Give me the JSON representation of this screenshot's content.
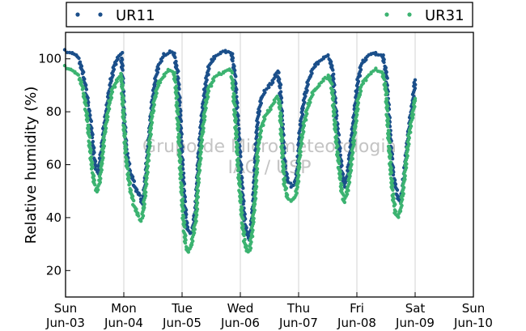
{
  "chart_data": {
    "type": "scatter",
    "title": "",
    "ylabel": "Relative humidity (%)",
    "xlabel": "",
    "watermark": [
      "Grupo de Micrometeorologia",
      "IAG / USP"
    ],
    "x_ticks": [
      {
        "day": "Sun",
        "date": "Jun-03"
      },
      {
        "day": "Mon",
        "date": "Jun-04"
      },
      {
        "day": "Tue",
        "date": "Jun-05"
      },
      {
        "day": "Wed",
        "date": "Jun-06"
      },
      {
        "day": "Thu",
        "date": "Jun-07"
      },
      {
        "day": "Fri",
        "date": "Jun-08"
      },
      {
        "day": "Sat",
        "date": "Jun-09"
      },
      {
        "day": "Sun",
        "date": "Jun-10"
      }
    ],
    "xlim_days": [
      0,
      7
    ],
    "ylim": [
      10,
      110
    ],
    "y_ticks": [
      20,
      40,
      60,
      80,
      100
    ],
    "grid_x": true,
    "grid_y": false,
    "legend_position": "top",
    "series": [
      {
        "name": "UR11",
        "color": "#1b4f8a",
        "points": [
          [
            0.0,
            103
          ],
          [
            0.1,
            102.5
          ],
          [
            0.2,
            101
          ],
          [
            0.26,
            98
          ],
          [
            0.32,
            92
          ],
          [
            0.38,
            84
          ],
          [
            0.44,
            74
          ],
          [
            0.48,
            65
          ],
          [
            0.52,
            58
          ],
          [
            0.55,
            57
          ],
          [
            0.58,
            60
          ],
          [
            0.62,
            66
          ],
          [
            0.66,
            74
          ],
          [
            0.7,
            80
          ],
          [
            0.75,
            88
          ],
          [
            0.8,
            94
          ],
          [
            0.86,
            99
          ],
          [
            0.92,
            101
          ],
          [
            0.96,
            102
          ],
          [
            1.0,
            80
          ],
          [
            1.04,
            66
          ],
          [
            1.1,
            58
          ],
          [
            1.16,
            54
          ],
          [
            1.22,
            50
          ],
          [
            1.28,
            48
          ],
          [
            1.32,
            45
          ],
          [
            1.36,
            52
          ],
          [
            1.4,
            62
          ],
          [
            1.44,
            72
          ],
          [
            1.48,
            82
          ],
          [
            1.54,
            92
          ],
          [
            1.6,
            98
          ],
          [
            1.7,
            101.5
          ],
          [
            1.8,
            103
          ],
          [
            1.86,
            102
          ],
          [
            1.92,
            95
          ],
          [
            1.96,
            82
          ],
          [
            2.0,
            62
          ],
          [
            2.04,
            47
          ],
          [
            2.08,
            37
          ],
          [
            2.12,
            34
          ],
          [
            2.18,
            35
          ],
          [
            2.24,
            45
          ],
          [
            2.28,
            62
          ],
          [
            2.34,
            78
          ],
          [
            2.4,
            90
          ],
          [
            2.46,
            97
          ],
          [
            2.56,
            101
          ],
          [
            2.7,
            102.5
          ],
          [
            2.8,
            103
          ],
          [
            2.85,
            102
          ],
          [
            2.9,
            95
          ],
          [
            2.94,
            82
          ],
          [
            2.98,
            68
          ],
          [
            3.02,
            54
          ],
          [
            3.06,
            42
          ],
          [
            3.1,
            35
          ],
          [
            3.14,
            32
          ],
          [
            3.18,
            35
          ],
          [
            3.22,
            45
          ],
          [
            3.26,
            62
          ],
          [
            3.3,
            78
          ],
          [
            3.36,
            85
          ],
          [
            3.42,
            88
          ],
          [
            3.48,
            89
          ],
          [
            3.56,
            92
          ],
          [
            3.64,
            95
          ],
          [
            3.68,
            90
          ],
          [
            3.72,
            75
          ],
          [
            3.76,
            60
          ],
          [
            3.82,
            53
          ],
          [
            3.88,
            52
          ],
          [
            3.94,
            53
          ],
          [
            3.98,
            58
          ],
          [
            4.02,
            72
          ],
          [
            4.08,
            83
          ],
          [
            4.16,
            91
          ],
          [
            4.24,
            96
          ],
          [
            4.34,
            99
          ],
          [
            4.44,
            100.5
          ],
          [
            4.52,
            101
          ],
          [
            4.58,
            96
          ],
          [
            4.62,
            85
          ],
          [
            4.66,
            75
          ],
          [
            4.7,
            66
          ],
          [
            4.74,
            58
          ],
          [
            4.78,
            52
          ],
          [
            4.84,
            56
          ],
          [
            4.9,
            68
          ],
          [
            4.96,
            80
          ],
          [
            5.02,
            92
          ],
          [
            5.08,
            98
          ],
          [
            5.2,
            101.5
          ],
          [
            5.34,
            102
          ],
          [
            5.44,
            101.5
          ],
          [
            5.5,
            95
          ],
          [
            5.54,
            82
          ],
          [
            5.58,
            68
          ],
          [
            5.62,
            57
          ],
          [
            5.66,
            52
          ],
          [
            5.7,
            48
          ],
          [
            5.74,
            46
          ],
          [
            5.78,
            50
          ],
          [
            5.82,
            58
          ],
          [
            5.86,
            67
          ],
          [
            5.9,
            75
          ],
          [
            5.95,
            82
          ],
          [
            6.0,
            92
          ]
        ]
      },
      {
        "name": "UR31",
        "color": "#3cb371",
        "points": [
          [
            0.0,
            97
          ],
          [
            0.1,
            96
          ],
          [
            0.2,
            94
          ],
          [
            0.26,
            92
          ],
          [
            0.32,
            86
          ],
          [
            0.38,
            76
          ],
          [
            0.42,
            66
          ],
          [
            0.46,
            58
          ],
          [
            0.5,
            52
          ],
          [
            0.54,
            50
          ],
          [
            0.58,
            53
          ],
          [
            0.62,
            60
          ],
          [
            0.66,
            70
          ],
          [
            0.7,
            76
          ],
          [
            0.75,
            83
          ],
          [
            0.8,
            88
          ],
          [
            0.86,
            91
          ],
          [
            0.92,
            93
          ],
          [
            0.96,
            94
          ],
          [
            1.0,
            76
          ],
          [
            1.04,
            62
          ],
          [
            1.1,
            52
          ],
          [
            1.16,
            46
          ],
          [
            1.22,
            42
          ],
          [
            1.28,
            39
          ],
          [
            1.32,
            40
          ],
          [
            1.36,
            48
          ],
          [
            1.4,
            58
          ],
          [
            1.44,
            68
          ],
          [
            1.48,
            78
          ],
          [
            1.54,
            86
          ],
          [
            1.6,
            91
          ],
          [
            1.7,
            94
          ],
          [
            1.8,
            96
          ],
          [
            1.86,
            95
          ],
          [
            1.9,
            88
          ],
          [
            1.94,
            72
          ],
          [
            1.98,
            55
          ],
          [
            2.02,
            40
          ],
          [
            2.06,
            30
          ],
          [
            2.1,
            27
          ],
          [
            2.14,
            28
          ],
          [
            2.18,
            32
          ],
          [
            2.24,
            40
          ],
          [
            2.28,
            55
          ],
          [
            2.34,
            70
          ],
          [
            2.4,
            82
          ],
          [
            2.46,
            89
          ],
          [
            2.56,
            93
          ],
          [
            2.7,
            95
          ],
          [
            2.8,
            96
          ],
          [
            2.85,
            95
          ],
          [
            2.88,
            88
          ],
          [
            2.92,
            75
          ],
          [
            2.96,
            60
          ],
          [
            3.0,
            48
          ],
          [
            3.04,
            37
          ],
          [
            3.08,
            30
          ],
          [
            3.12,
            27
          ],
          [
            3.16,
            28
          ],
          [
            3.2,
            34
          ],
          [
            3.26,
            50
          ],
          [
            3.3,
            66
          ],
          [
            3.36,
            74
          ],
          [
            3.42,
            78
          ],
          [
            3.48,
            80
          ],
          [
            3.56,
            83
          ],
          [
            3.64,
            86
          ],
          [
            3.68,
            82
          ],
          [
            3.72,
            65
          ],
          [
            3.76,
            52
          ],
          [
            3.82,
            47
          ],
          [
            3.88,
            46
          ],
          [
            3.94,
            48
          ],
          [
            3.98,
            52
          ],
          [
            4.02,
            64
          ],
          [
            4.08,
            74
          ],
          [
            4.16,
            82
          ],
          [
            4.24,
            87
          ],
          [
            4.34,
            90
          ],
          [
            4.44,
            92
          ],
          [
            4.52,
            94
          ],
          [
            4.58,
            88
          ],
          [
            4.62,
            76
          ],
          [
            4.66,
            66
          ],
          [
            4.7,
            58
          ],
          [
            4.74,
            50
          ],
          [
            4.78,
            46
          ],
          [
            4.84,
            50
          ],
          [
            4.9,
            60
          ],
          [
            4.96,
            72
          ],
          [
            5.02,
            84
          ],
          [
            5.08,
            90
          ],
          [
            5.2,
            94
          ],
          [
            5.34,
            96
          ],
          [
            5.44,
            95
          ],
          [
            5.5,
            88
          ],
          [
            5.54,
            72
          ],
          [
            5.58,
            58
          ],
          [
            5.62,
            48
          ],
          [
            5.66,
            42
          ],
          [
            5.7,
            40
          ],
          [
            5.74,
            42
          ],
          [
            5.78,
            48
          ],
          [
            5.82,
            56
          ],
          [
            5.86,
            64
          ],
          [
            5.9,
            72
          ],
          [
            5.95,
            78
          ],
          [
            6.0,
            85
          ]
        ]
      }
    ]
  }
}
